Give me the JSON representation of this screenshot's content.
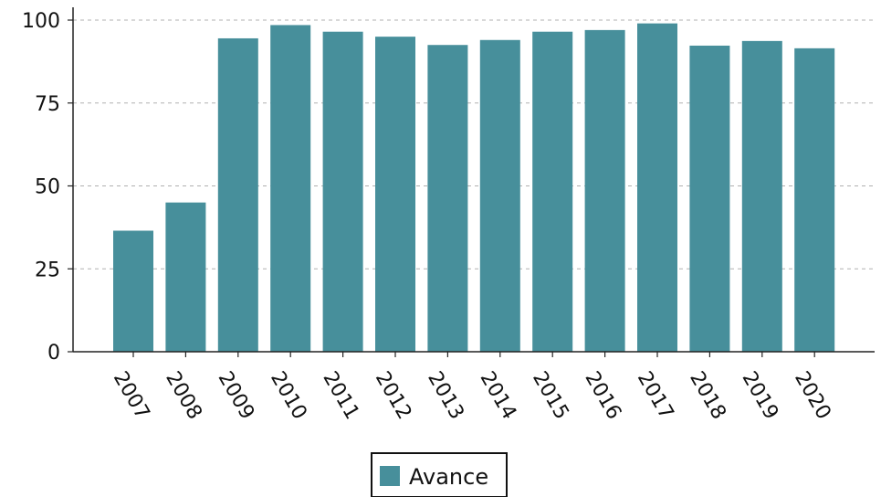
{
  "chart_data": {
    "type": "bar",
    "categories": [
      "2007",
      "2008",
      "2009",
      "2010",
      "2011",
      "2012",
      "2013",
      "2014",
      "2015",
      "2016",
      "2017",
      "2018",
      "2019",
      "2020"
    ],
    "series": [
      {
        "name": "Avance",
        "color": "#478f9b",
        "values": [
          36.5,
          45,
          94.5,
          98.5,
          96.5,
          95,
          92.5,
          94,
          96.5,
          97,
          99,
          92.3,
          93.7,
          91.5
        ]
      }
    ],
    "title": "",
    "xlabel": "",
    "ylabel": "",
    "ylim": [
      0,
      100
    ],
    "yticks": [
      0,
      25,
      50,
      75,
      100
    ],
    "grid": "horizontal-dashed",
    "legend": {
      "placement": "bottom-center",
      "labels": [
        "Avance"
      ]
    }
  }
}
